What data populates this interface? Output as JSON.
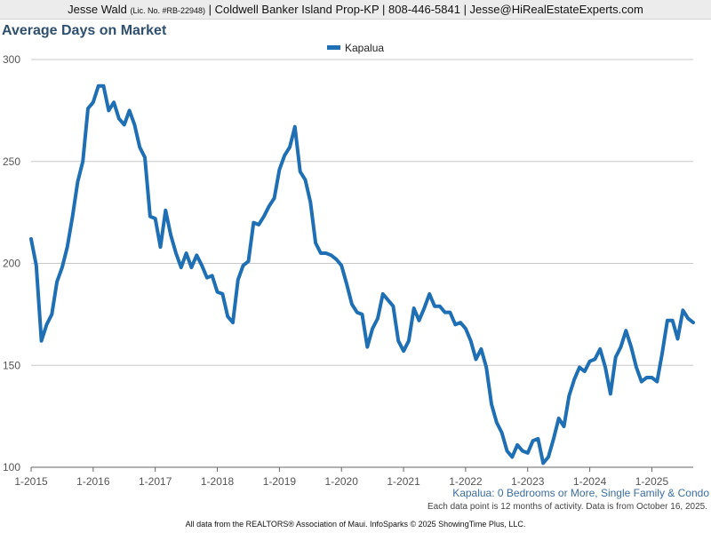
{
  "header": {
    "agent_name": "Jesse Wald",
    "license": "(Lic. No. #RB-22948)",
    "contact": "| Coldwell Banker Island Prop-KP | 808-446-5841 | Jesse@HiRealEstateExperts.com"
  },
  "footer": {
    "subtitle": "Kapalua: 0 Bedrooms or More, Single Family & Condo",
    "note": "Each data point is 12 months of activity. Data is from October 16, 2025.",
    "source": "All data from the REALTORS® Association of Maui. InfoSparks © 2025 ShowingTime Plus, LLC."
  },
  "colors": {
    "series": "#1f6fb5",
    "grid": "#c8c8c8",
    "axis": "#666666",
    "tick_text": "#555555"
  },
  "chart_data": {
    "type": "line",
    "title": "Average Days on Market",
    "xlabel": "",
    "ylabel": "",
    "grid": true,
    "legend": "top-center",
    "ylim": [
      100,
      300
    ],
    "y_ticks": [
      100,
      150,
      200,
      250,
      300
    ],
    "x_start": "2015-01",
    "x_end": "2025-09",
    "x_tick_labels": [
      "1-2015",
      "1-2016",
      "1-2017",
      "1-2018",
      "1-2019",
      "1-2020",
      "1-2021",
      "1-2022",
      "1-2023",
      "1-2024",
      "1-2025"
    ],
    "series": [
      {
        "name": "Kapalua",
        "start": "2015-01",
        "interval": "month",
        "values": [
          212,
          199,
          162,
          170,
          175,
          191,
          198,
          208,
          223,
          240,
          250,
          276,
          279,
          287,
          287,
          275,
          279,
          271,
          268,
          275,
          268,
          257,
          252,
          223,
          222,
          208,
          226,
          214,
          205,
          198,
          205,
          198,
          204,
          199,
          193,
          194,
          186,
          185,
          174,
          171,
          192,
          199,
          201,
          220,
          219,
          223,
          228,
          232,
          246,
          253,
          257,
          267,
          245,
          241,
          230,
          210,
          205,
          205,
          204,
          202,
          199,
          190,
          180,
          176,
          175,
          159,
          168,
          173,
          185,
          182,
          179,
          162,
          157,
          162,
          178,
          172,
          178,
          185,
          179,
          179,
          176,
          176,
          170,
          171,
          168,
          162,
          153,
          158,
          149,
          131,
          122,
          117,
          108,
          105,
          111,
          108,
          107,
          113,
          114,
          102,
          105,
          114,
          124,
          120,
          135,
          143,
          149,
          147,
          152,
          153,
          158,
          149,
          136,
          154,
          159,
          167,
          159,
          149,
          142,
          144,
          144,
          142,
          156,
          172,
          172,
          163,
          177,
          173,
          171
        ]
      }
    ]
  }
}
